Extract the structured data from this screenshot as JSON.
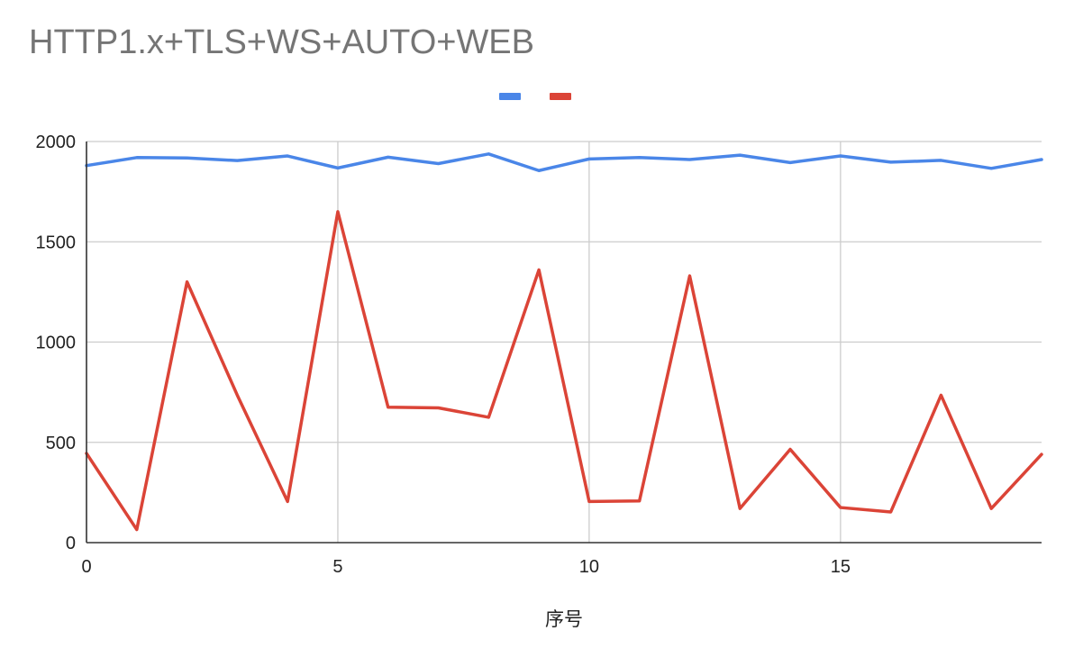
{
  "chart_data": {
    "type": "line",
    "title": "HTTP1.x+TLS+WS+AUTO+WEB",
    "xlabel": "序号",
    "ylabel": "",
    "x": [
      0,
      1,
      2,
      3,
      4,
      5,
      6,
      7,
      8,
      9,
      10,
      11,
      12,
      13,
      14,
      15,
      16,
      17,
      18,
      19
    ],
    "xlim": [
      0,
      19
    ],
    "ylim": [
      0,
      2000
    ],
    "xticks": [
      "0",
      "5",
      "10",
      "15"
    ],
    "yticks": [
      "0",
      "500",
      "1000",
      "1500",
      "2000"
    ],
    "grid": true,
    "legend": "top",
    "series": [
      {
        "color": "#4a86e8",
        "values": [
          1880,
          1920,
          1918,
          1905,
          1928,
          1868,
          1922,
          1890,
          1938,
          1855,
          1913,
          1920,
          1910,
          1932,
          1895,
          1928,
          1897,
          1906,
          1866,
          1910
        ]
      },
      {
        "color": "#db4437",
        "values": [
          445,
          65,
          1300,
          735,
          205,
          1650,
          675,
          672,
          625,
          1360,
          205,
          208,
          1330,
          170,
          465,
          175,
          153,
          735,
          170,
          440
        ]
      }
    ]
  }
}
